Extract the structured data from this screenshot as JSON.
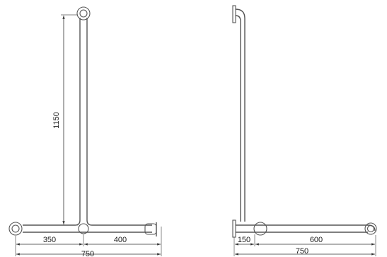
{
  "front_view": {
    "height": "1150",
    "left_span": "350",
    "right_span": "400",
    "total_width": "750"
  },
  "side_view": {
    "offset": "150",
    "span": "600",
    "total_width": "750"
  }
}
